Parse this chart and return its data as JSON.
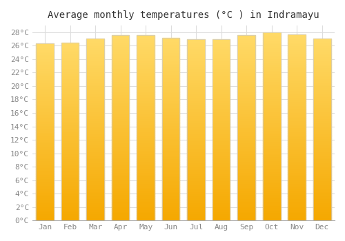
{
  "title": "Average monthly temperatures (°C ) in Indramayu",
  "months": [
    "Jan",
    "Feb",
    "Mar",
    "Apr",
    "May",
    "Jun",
    "Jul",
    "Aug",
    "Sep",
    "Oct",
    "Nov",
    "Dec"
  ],
  "values": [
    26.3,
    26.4,
    27.1,
    27.6,
    27.6,
    27.2,
    27.0,
    27.0,
    27.6,
    28.0,
    27.7,
    27.1
  ],
  "bar_color_bottom": "#F5A800",
  "bar_color_top": "#FFD966",
  "ylim": [
    0,
    29
  ],
  "ytick_step": 2,
  "background_color": "#ffffff",
  "plot_bg_color": "#ffffff",
  "grid_color": "#dddddd",
  "title_fontsize": 10,
  "tick_fontsize": 8,
  "font_family": "monospace",
  "bar_edge_color": "#cccccc",
  "bar_width": 0.7
}
